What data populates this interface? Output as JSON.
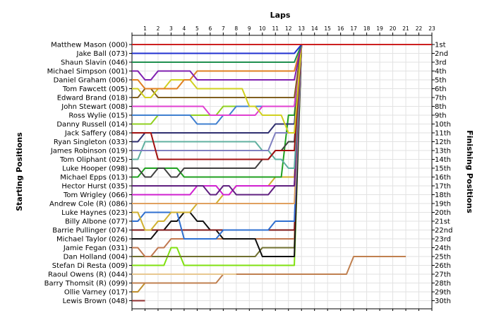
{
  "chart_data": {
    "type": "line",
    "title": "Laps",
    "ylabel_left": "Starting Positions",
    "ylabel_right": "Finishing Positions",
    "laps": [
      "1",
      "2",
      "3",
      "4",
      "5",
      "6",
      "7",
      "8",
      "9",
      "10",
      "11",
      "12",
      "13",
      "14",
      "15",
      "16",
      "17",
      "18",
      "19",
      "20",
      "21",
      "22",
      "23"
    ],
    "finishing_labels": [
      "1st",
      "2nd",
      "3rd",
      "4th",
      "5th",
      "6th",
      "7th",
      "8th",
      "9th",
      "10th",
      "11th",
      "12th",
      "13th",
      "14th",
      "15th",
      "16th",
      "17th",
      "18th",
      "19th",
      "20th",
      "21st",
      "22nd",
      "23rd",
      "24th",
      "25th",
      "26th",
      "27th",
      "28th",
      "29th",
      "30th"
    ],
    "grid": true,
    "series": [
      {
        "name": "Matthew Mason (000)",
        "color": "#cc2020",
        "positions": [
          1,
          1,
          1,
          1,
          1,
          1,
          1,
          1,
          1,
          1,
          1,
          1,
          1,
          1,
          1,
          1,
          1,
          1,
          1,
          1,
          1,
          1,
          1,
          1
        ]
      },
      {
        "name": "Jake Ball (073)",
        "color": "#2030d0",
        "positions": [
          2,
          2,
          2,
          2,
          2,
          2,
          2,
          2,
          2,
          2,
          2,
          2,
          2,
          1
        ]
      },
      {
        "name": "Shaun Slavin (046)",
        "color": "#209050",
        "positions": [
          3,
          3,
          3,
          3,
          3,
          3,
          3,
          3,
          3,
          3,
          3,
          3,
          3,
          1
        ]
      },
      {
        "name": "Michael Simpson (001)",
        "color": "#8020b0",
        "positions": [
          4,
          5,
          4,
          4,
          4,
          5,
          5,
          5,
          5,
          5,
          5,
          5,
          5,
          1
        ]
      },
      {
        "name": "Daniel Graham (006)",
        "color": "#e08020",
        "positions": [
          5,
          6,
          6,
          6,
          5,
          4,
          4,
          4,
          4,
          4,
          4,
          4,
          4,
          1
        ]
      },
      {
        "name": "Tom Fawcett (005)",
        "color": "#d0d020",
        "positions": [
          6,
          7,
          6,
          5,
          5,
          6,
          6,
          6,
          6,
          8,
          9,
          9,
          11,
          1
        ]
      },
      {
        "name": "Edward Brand (018)",
        "color": "#806020",
        "positions": [
          7,
          6,
          7,
          7,
          7,
          7,
          7,
          7,
          7,
          7,
          7,
          7,
          7,
          1
        ]
      },
      {
        "name": "John Stewart (008)",
        "color": "#e040d0",
        "positions": [
          8,
          8,
          8,
          8,
          8,
          8,
          9,
          9,
          9,
          9,
          8,
          8,
          8,
          1
        ]
      },
      {
        "name": "Ross Wylie (015)",
        "color": "#4080d0",
        "positions": [
          9,
          9,
          9,
          9,
          9,
          10,
          10,
          9,
          8,
          8,
          8,
          8,
          8,
          1
        ]
      },
      {
        "name": "Danny Russell (014)",
        "color": "#90d020",
        "positions": [
          10,
          10,
          9,
          9,
          9,
          9,
          9,
          8,
          8,
          8,
          8,
          8,
          8,
          1
        ]
      },
      {
        "name": "Jack Saffery (084)",
        "color": "#a01010",
        "positions": [
          11,
          11,
          14,
          14,
          14,
          14,
          14,
          14,
          14,
          14,
          14,
          13,
          13,
          1
        ]
      },
      {
        "name": "Ryan Singleton (033)",
        "color": "#303070",
        "positions": [
          12,
          11,
          11,
          11,
          11,
          11,
          11,
          11,
          11,
          11,
          11,
          10,
          10,
          1
        ]
      },
      {
        "name": "James Robinson (019)",
        "color": "#8080c0",
        "positions": [
          13,
          13,
          13,
          13,
          13,
          13,
          13,
          13,
          13,
          13,
          13,
          11,
          11,
          1
        ]
      },
      {
        "name": "Tom Oliphant (025)",
        "color": "#60b0a0",
        "positions": [
          14,
          12,
          12,
          12,
          12,
          12,
          12,
          12,
          12,
          12,
          13,
          14,
          15,
          1
        ]
      },
      {
        "name": "Luke Hooper (098)",
        "color": "#404040",
        "positions": [
          15,
          16,
          15,
          16,
          15,
          15,
          15,
          15,
          15,
          15,
          14,
          13,
          12,
          1
        ]
      },
      {
        "name": "Michael Epps (013)",
        "color": "#20a020",
        "positions": [
          16,
          15,
          15,
          15,
          16,
          16,
          16,
          16,
          16,
          16,
          16,
          16,
          9,
          1
        ]
      },
      {
        "name": "Hector Hurst (035)",
        "color": "#602080",
        "positions": [
          17,
          17,
          17,
          17,
          17,
          17,
          18,
          17,
          18,
          18,
          18,
          17,
          17,
          1
        ]
      },
      {
        "name": "Tom Wrigley (066)",
        "color": "#d020d0",
        "positions": [
          18,
          18,
          18,
          18,
          18,
          17,
          17,
          18,
          17,
          17,
          17,
          17,
          17,
          1
        ]
      },
      {
        "name": "Andrew Cole (R) (086)",
        "color": "#e0a060",
        "positions": [
          19,
          19,
          19,
          19,
          19,
          19,
          19,
          19,
          19,
          19,
          19,
          19,
          19,
          1
        ]
      },
      {
        "name": "Luke Haynes (023)",
        "color": "#d0b030",
        "positions": [
          20,
          22,
          21,
          20,
          20,
          19,
          19,
          18,
          17,
          17,
          17,
          16,
          16,
          1
        ]
      },
      {
        "name": "Billy Albone (077)",
        "color": "#3070d0",
        "positions": [
          21,
          20,
          20,
          20,
          23,
          23,
          23,
          22,
          22,
          22,
          22,
          21,
          21,
          1
        ]
      },
      {
        "name": "Barrie Pullinger (074)",
        "color": "#801818",
        "positions": [
          22,
          22,
          22,
          22,
          22,
          22,
          22,
          22,
          22,
          22,
          22,
          22,
          22,
          1
        ]
      },
      {
        "name": "Michael Taylor (026)",
        "color": "#101010",
        "positions": [
          23,
          23,
          22,
          21,
          20,
          21,
          22,
          23,
          23,
          23,
          25,
          25,
          25,
          1
        ]
      },
      {
        "name": "Jamie Fegan (031)",
        "color": "#c07850",
        "positions": [
          24,
          25,
          24,
          23,
          23,
          23,
          23,
          23,
          23,
          23,
          23,
          23,
          23,
          1
        ]
      },
      {
        "name": "Dan Holland (004)",
        "color": "#707030",
        "positions": [
          25,
          25,
          25,
          25,
          25,
          25,
          25,
          25,
          25,
          25,
          24,
          24,
          24,
          1
        ]
      },
      {
        "name": "Stefan Di Resta (009)",
        "color": "#80e010",
        "positions": [
          26,
          26,
          26,
          24,
          26,
          26,
          26,
          26,
          26,
          26,
          26,
          26,
          26,
          1
        ]
      },
      {
        "name": "Raoul Owens (R) (044)",
        "color": "#e8c890",
        "positions": [
          27,
          27,
          27,
          27,
          27,
          27,
          27,
          27,
          27
        ]
      },
      {
        "name": "Barry Thomsit (R) (099)",
        "color": "#c08050",
        "positions": [
          28,
          28,
          28,
          28,
          28,
          28,
          28,
          27,
          27,
          27,
          27,
          27,
          27,
          27,
          27,
          27,
          27,
          25,
          25,
          25,
          25,
          25
        ]
      },
      {
        "name": "Ollie Varney (017)",
        "color": "#c09030",
        "positions": [
          29,
          28
        ]
      },
      {
        "name": "Lewis Brown (048)",
        "color": "#903030",
        "positions": [
          30,
          30
        ]
      }
    ]
  }
}
